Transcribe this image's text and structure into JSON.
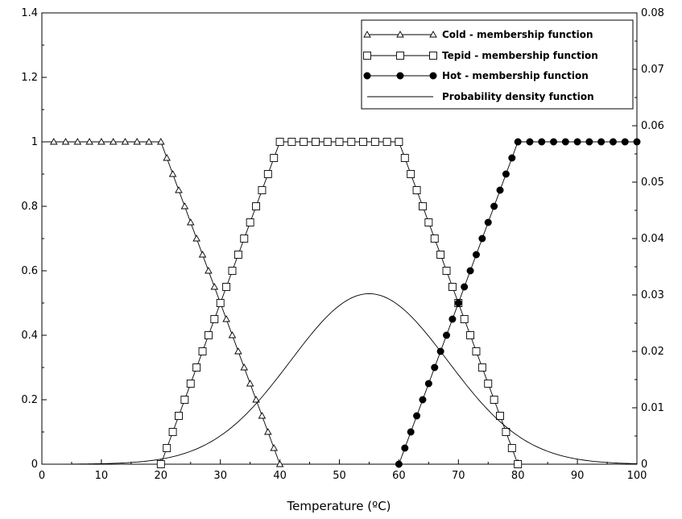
{
  "chart_data": {
    "type": "line",
    "title": "",
    "xlabel": "Temperature (ºC)",
    "ylabel_left": "",
    "ylabel_right": "",
    "xlim": [
      0,
      100
    ],
    "ylim_left": [
      0,
      1.4
    ],
    "ylim_right": [
      0,
      0.08
    ],
    "x_ticks": [
      "0",
      "10",
      "20",
      "30",
      "40",
      "50",
      "60",
      "70",
      "80",
      "90",
      "100"
    ],
    "y_ticks_left": [
      "0",
      "0.2",
      "0.4",
      "0.6",
      "0.8",
      "1",
      "1.2",
      "1.4"
    ],
    "y_ticks_right": [
      "0",
      "0.01",
      "0.02",
      "0.03",
      "0.04",
      "0.05",
      "0.06",
      "0.07",
      "0.08"
    ],
    "grid": false,
    "legend_position": "top-right",
    "series": [
      {
        "name": "Cold - membership function",
        "axis": "left",
        "marker": "triangle",
        "points": [
          [
            0,
            1
          ],
          [
            20,
            1
          ],
          [
            40,
            0
          ]
        ]
      },
      {
        "name": "Tepid - membership function",
        "axis": "left",
        "marker": "square",
        "points": [
          [
            20,
            0
          ],
          [
            40,
            1
          ],
          [
            60,
            1
          ],
          [
            80,
            0
          ]
        ]
      },
      {
        "name": "Hot - membership function",
        "axis": "left",
        "marker": "circle",
        "points": [
          [
            60,
            0
          ],
          [
            80,
            1
          ],
          [
            100,
            1
          ]
        ]
      },
      {
        "name": "Probability density function",
        "axis": "right",
        "marker": "none",
        "distribution": "normal",
        "mean": 55,
        "std": 13.2,
        "x_range": [
          5,
          100
        ]
      }
    ]
  }
}
